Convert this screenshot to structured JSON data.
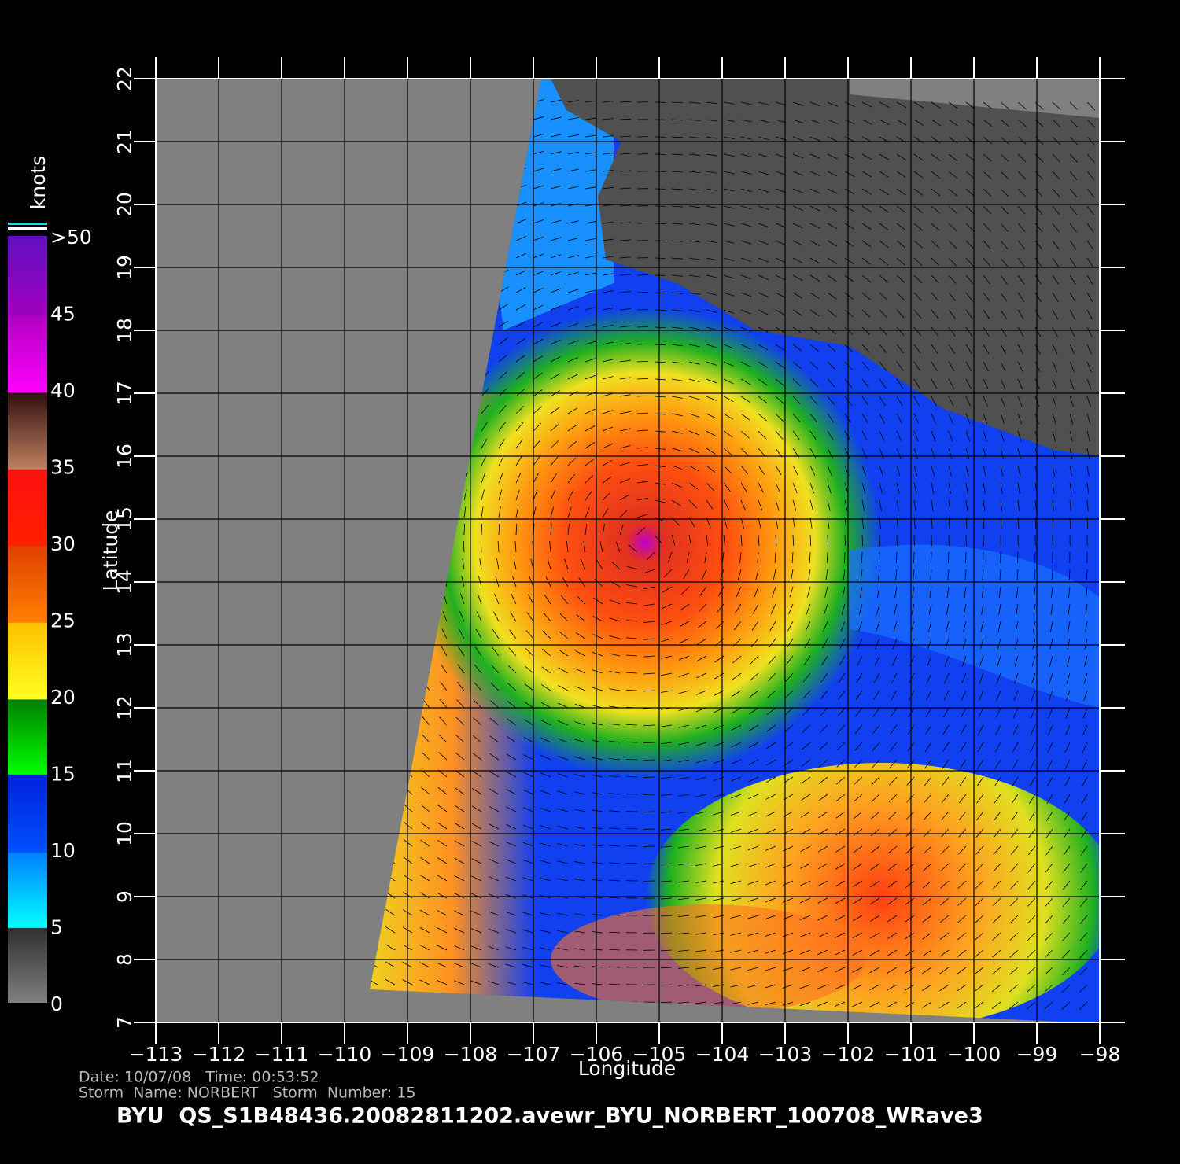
{
  "map": {
    "title": "BYU  QS_S1B48436.20082811202.avewr_BYU_NORBERT_100708_WRave3",
    "date_line": "Date: 10/07/08   Time: 00:53:52",
    "storm_line": "Storm  Name: NORBERT   Storm  Number: 15",
    "x_label": "Longitude",
    "y_label": "Latitude",
    "xlim": [
      -113,
      -98
    ],
    "ylim": [
      7,
      22
    ],
    "xticks": [
      {
        "value": -113,
        "label": "−113"
      },
      {
        "value": -112,
        "label": "−112"
      },
      {
        "value": -111,
        "label": "−111"
      },
      {
        "value": -110,
        "label": "−110"
      },
      {
        "value": -109,
        "label": "−109"
      },
      {
        "value": -108,
        "label": "−108"
      },
      {
        "value": -107,
        "label": "−107"
      },
      {
        "value": -106,
        "label": "−106"
      },
      {
        "value": -105,
        "label": "−105"
      },
      {
        "value": -104,
        "label": "−104"
      },
      {
        "value": -103,
        "label": "−103"
      },
      {
        "value": -102,
        "label": "−102"
      },
      {
        "value": -101,
        "label": "−101"
      },
      {
        "value": -100,
        "label": "−100"
      },
      {
        "value": -99,
        "label": "−99"
      },
      {
        "value": -98,
        "label": "−98"
      }
    ],
    "yticks": [
      7,
      8,
      9,
      10,
      11,
      12,
      13,
      14,
      15,
      16,
      17,
      18,
      19,
      20,
      21,
      22
    ],
    "colorbar": {
      "unit": "knots",
      "lim": [
        0,
        50
      ],
      "ticks": [
        0,
        5,
        10,
        15,
        20,
        25,
        30,
        35,
        40,
        45,
        {
          "value": 50,
          "label": ">50"
        }
      ]
    }
  }
}
